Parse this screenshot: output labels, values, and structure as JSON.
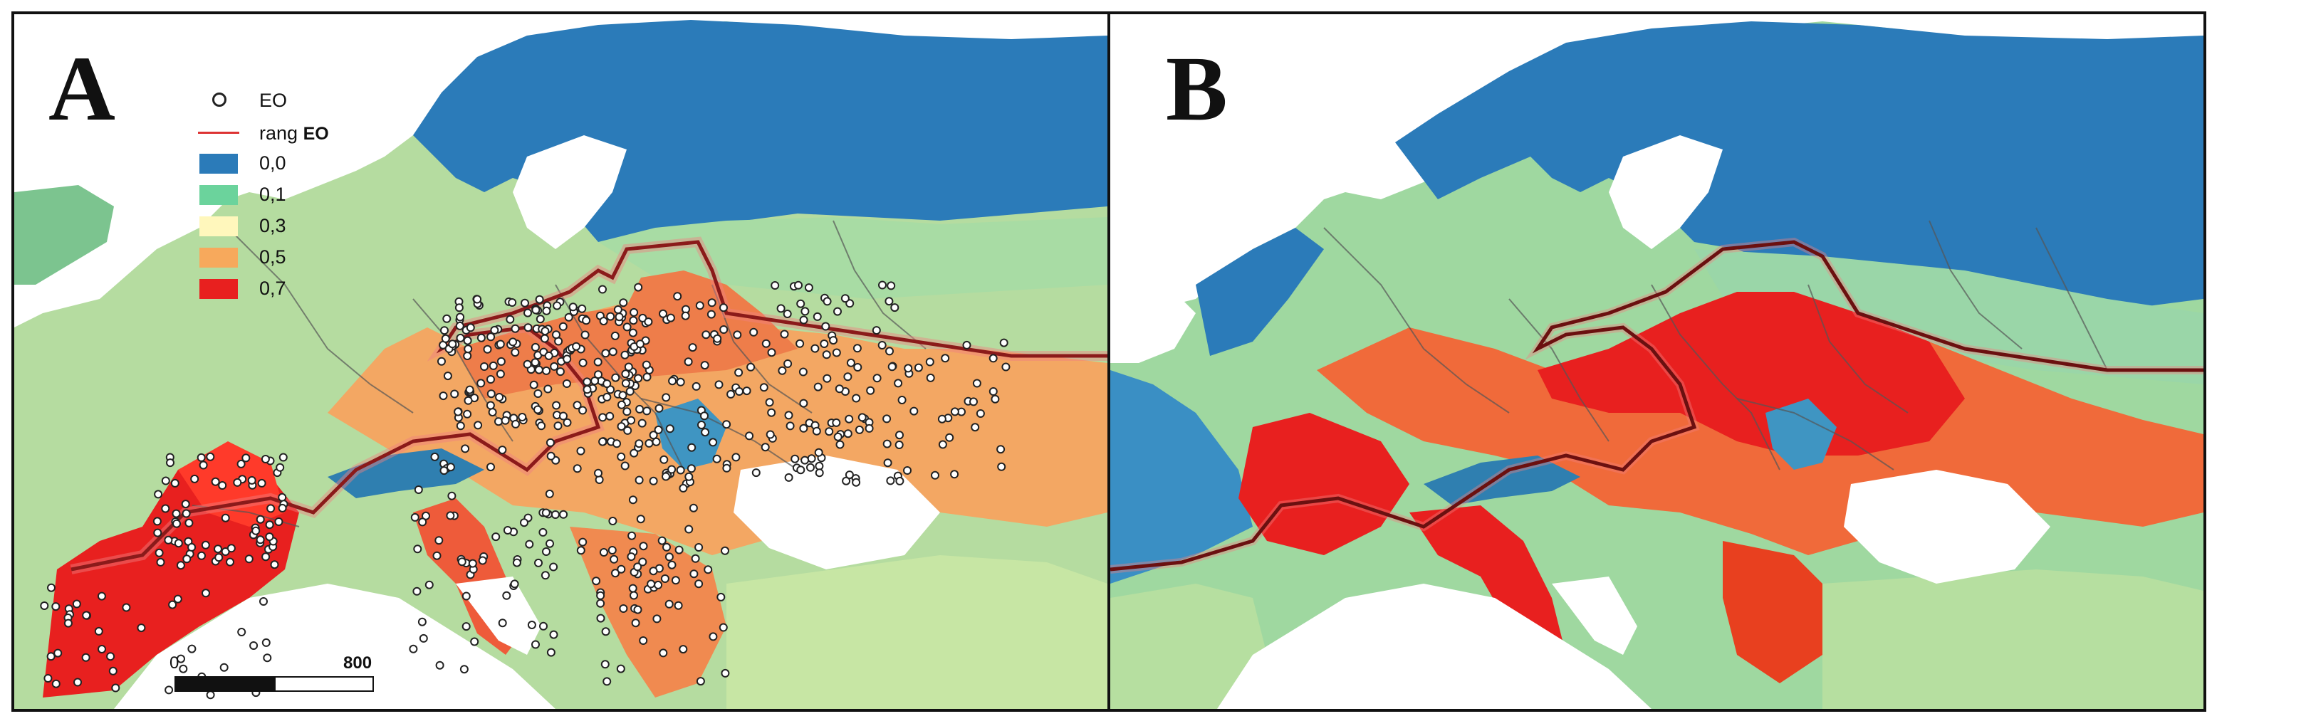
{
  "panels": [
    {
      "letter": "A"
    },
    {
      "letter": "B"
    }
  ],
  "legend": {
    "points_label": "EO",
    "range_label": "rang",
    "range_label_bold": "EO",
    "classes": [
      {
        "label": "0,0",
        "color": "#2b7bb9"
      },
      {
        "label": "0,1",
        "color": "#6bd39c"
      },
      {
        "label": "0,3",
        "color": "#fff7bc"
      },
      {
        "label": "0,5",
        "color": "#f7a95c"
      },
      {
        "label": "0,7",
        "color": "#e8201f"
      }
    ]
  },
  "scalebar": {
    "min_label": "0",
    "max_label": "800"
  },
  "colors": {
    "sea": "#ffffff",
    "boundary": "#555555",
    "range_line": "#8b1a1a",
    "range_glow": "#f08080"
  }
}
